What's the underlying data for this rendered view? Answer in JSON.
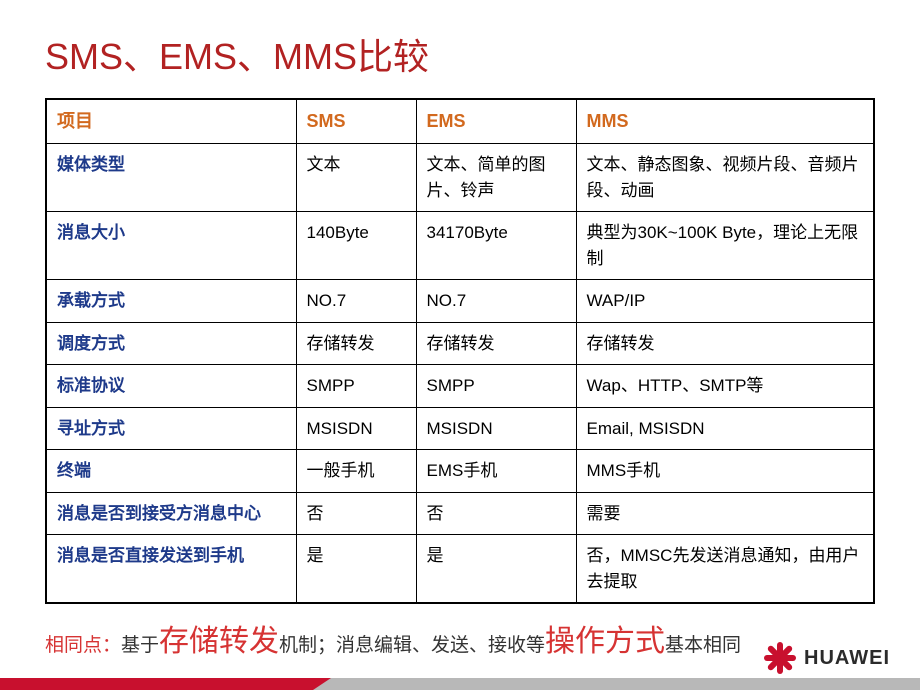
{
  "title": "SMS、EMS、MMS比较",
  "table": {
    "headers": [
      "项目",
      "SMS",
      "EMS",
      "MMS"
    ],
    "rows": [
      {
        "label": "媒体类型",
        "sms": "文本",
        "ems": "文本、简单的图片、铃声",
        "mms": "文本、静态图象、视频片段、音频片段、动画"
      },
      {
        "label": "消息大小",
        "sms": "140Byte",
        "ems": "34170Byte",
        "mms": "典型为30K~100K Byte，理论上无限制"
      },
      {
        "label": "承载方式",
        "sms": "NO.7",
        "ems": "NO.7",
        "mms": "WAP/IP"
      },
      {
        "label": "调度方式",
        "sms": "存储转发",
        "ems": "存储转发",
        "mms": "存储转发"
      },
      {
        "label": "标准协议",
        "sms": "SMPP",
        "ems": "SMPP",
        "mms": "Wap、HTTP、SMTP等"
      },
      {
        "label": "寻址方式",
        "sms": "MSISDN",
        "ems": "MSISDN",
        "mms": "Email, MSISDN"
      },
      {
        "label": "终端",
        "sms": "一般手机",
        "ems": "EMS手机",
        "mms": "MMS手机"
      },
      {
        "label": "消息是否到接受方消息中心",
        "sms": "否",
        "ems": "否",
        "mms": "需要"
      },
      {
        "label": "消息是否直接发送到手机",
        "sms": "是",
        "ems": "是",
        "mms": "否，MMSC先发送消息通知，由用户去提取"
      }
    ]
  },
  "summary": {
    "prefix": "相同点：",
    "t1": "基于",
    "h1": "存储转发",
    "t2": "机制；消息编辑、发送、接收等",
    "h2": "操作方式",
    "t3": "基本相同"
  },
  "logo_text": "HUAWEI",
  "colors": {
    "title_color": "#b22222",
    "header_color": "#d2691e",
    "row_label_color": "#1e3a8a",
    "accent_red": "#c8102e",
    "summary_red": "#d63333",
    "footer_gray": "#b8b8b8"
  }
}
